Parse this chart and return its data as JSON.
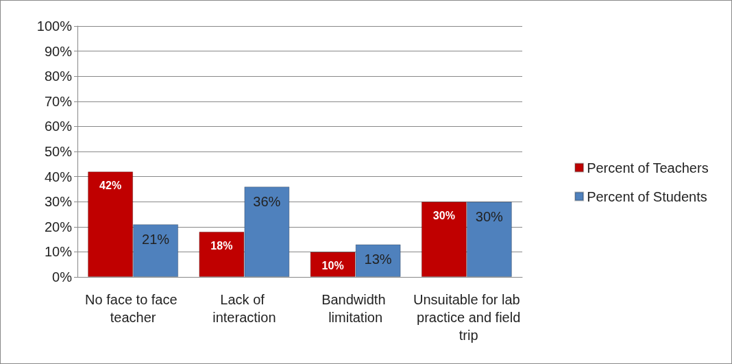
{
  "chart_data": {
    "type": "bar",
    "categories": [
      "No face to face teacher",
      "Lack of interaction",
      "Bandwidth limitation",
      "Unsuitable for lab practice and field trip"
    ],
    "series": [
      {
        "name": "Percent of Teachers",
        "color": "#c00000",
        "values": [
          42,
          18,
          10,
          30
        ],
        "value_labels": [
          "42%",
          "18%",
          "10%",
          "30%"
        ]
      },
      {
        "name": "Percent of Students",
        "color": "#4f81bd",
        "values": [
          21,
          36,
          13,
          30
        ],
        "value_labels": [
          "21%",
          "36%",
          "13%",
          "30%"
        ]
      }
    ],
    "ylim": [
      0,
      100
    ],
    "yticks": [
      {
        "value": 0,
        "label": "0%"
      },
      {
        "value": 10,
        "label": "10%"
      },
      {
        "value": 20,
        "label": "20%"
      },
      {
        "value": 30,
        "label": "30%"
      },
      {
        "value": 40,
        "label": "40%"
      },
      {
        "value": 50,
        "label": "50%"
      },
      {
        "value": 60,
        "label": "60%"
      },
      {
        "value": 70,
        "label": "70%"
      },
      {
        "value": 80,
        "label": "80%"
      },
      {
        "value": 90,
        "label": "90%"
      },
      {
        "value": 100,
        "label": "100%"
      }
    ],
    "grid": "y",
    "legend": "right"
  }
}
